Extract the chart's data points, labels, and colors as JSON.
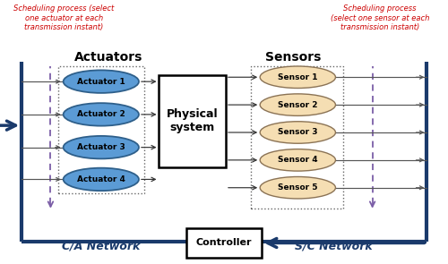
{
  "actuators": [
    "Actuator 1",
    "Actuator 2",
    "Actuator 3",
    "Actuator 4"
  ],
  "sensors": [
    "Sensor 1",
    "Sensor 2",
    "Sensor 3",
    "Sensor 4",
    "Sensor 5"
  ],
  "actuator_color": "#5b9bd5",
  "actuator_edge_color": "#2e5f8a",
  "sensor_color": "#f5deb3",
  "sensor_edge_color": "#8b7355",
  "network_line_color": "#1a3a6b",
  "scheduling_color": "#cc0000",
  "dashed_line_color": "#7b5ea7",
  "ca_network_label": "C/A Network",
  "sc_network_label": "S/C Network",
  "actuators_label": "Actuators",
  "sensors_label": "Sensors",
  "physical_label": "Physical\nsystem",
  "controller_label": "Controller",
  "scheduling_left": "Scheduling process (select\none actuator at each\ntransmission instant)",
  "scheduling_right": "Scheduling process\n(select one sensor at each\ntransmission instant)"
}
